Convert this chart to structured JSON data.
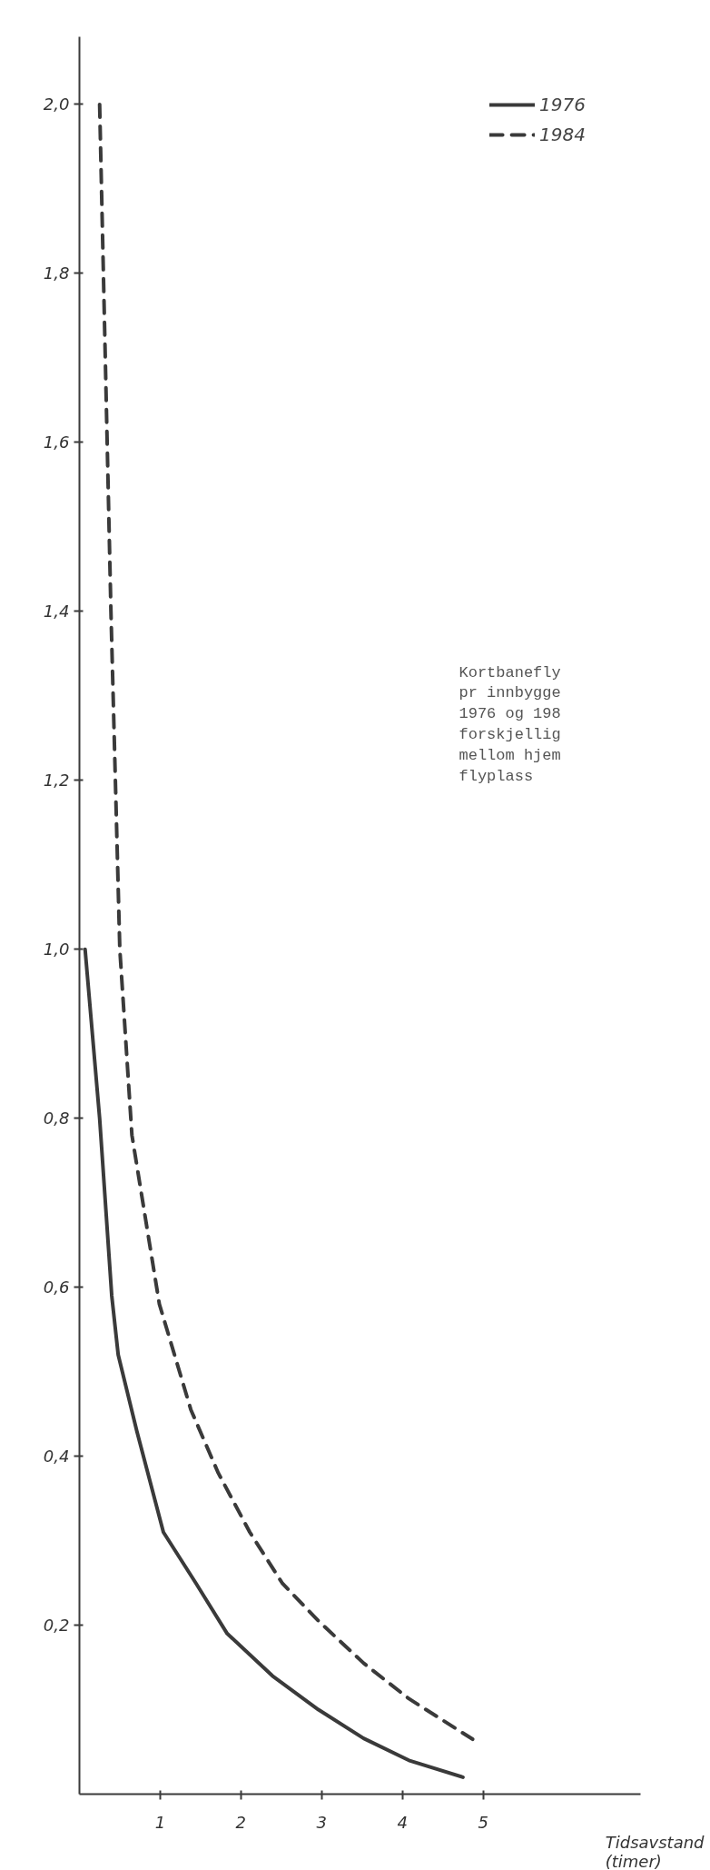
{
  "chart_data": {
    "type": "line",
    "xlabel": "Tidsavstand\n(timer)",
    "annotations": [
      "Kortbanefly\npr innbygge\n1976 og 198\nforskjellig\nmellom hjem\nflyplass"
    ],
    "series": [
      {
        "name": "1976",
        "color": "#3a3a3a",
        "line_style": "solid",
        "x": [
          0.07,
          0.25,
          0.4,
          0.48,
          0.71,
          1.04,
          1.44,
          1.83,
          2.39,
          2.96,
          3.52,
          4.08,
          4.75
        ],
        "values": [
          1.0,
          0.8,
          0.59,
          0.52,
          0.43,
          0.31,
          0.25,
          0.19,
          0.14,
          0.1,
          0.066,
          0.04,
          0.02
        ]
      },
      {
        "name": "1984",
        "color": "#3a3a3a",
        "line_style": "dashed",
        "x": [
          0.25,
          0.39,
          0.5,
          0.65,
          0.99,
          1.38,
          1.72,
          2.11,
          2.51,
          2.96,
          3.52,
          4.08,
          4.87
        ],
        "values": [
          2.0,
          1.4,
          1.0,
          0.78,
          0.58,
          0.455,
          0.38,
          0.31,
          0.25,
          0.205,
          0.155,
          0.113,
          0.065
        ]
      }
    ],
    "xlim": [
      0,
      6.95
    ],
    "ylim": [
      0,
      2.08
    ],
    "xticks": [
      1,
      2,
      3,
      4,
      5
    ],
    "yticks": [
      {
        "value": 0.2,
        "label": "0,2"
      },
      {
        "value": 0.4,
        "label": "0,4"
      },
      {
        "value": 0.6,
        "label": "0,6"
      },
      {
        "value": 0.8,
        "label": "0,8"
      },
      {
        "value": 1.0,
        "label": "1,0"
      },
      {
        "value": 1.2,
        "label": "1,2"
      },
      {
        "value": 1.4,
        "label": "1,4"
      },
      {
        "value": 1.6,
        "label": "1,6"
      },
      {
        "value": 1.8,
        "label": "1,8"
      },
      {
        "value": 2.0,
        "label": "2,0"
      }
    ],
    "grid": false,
    "legend": "top right"
  }
}
